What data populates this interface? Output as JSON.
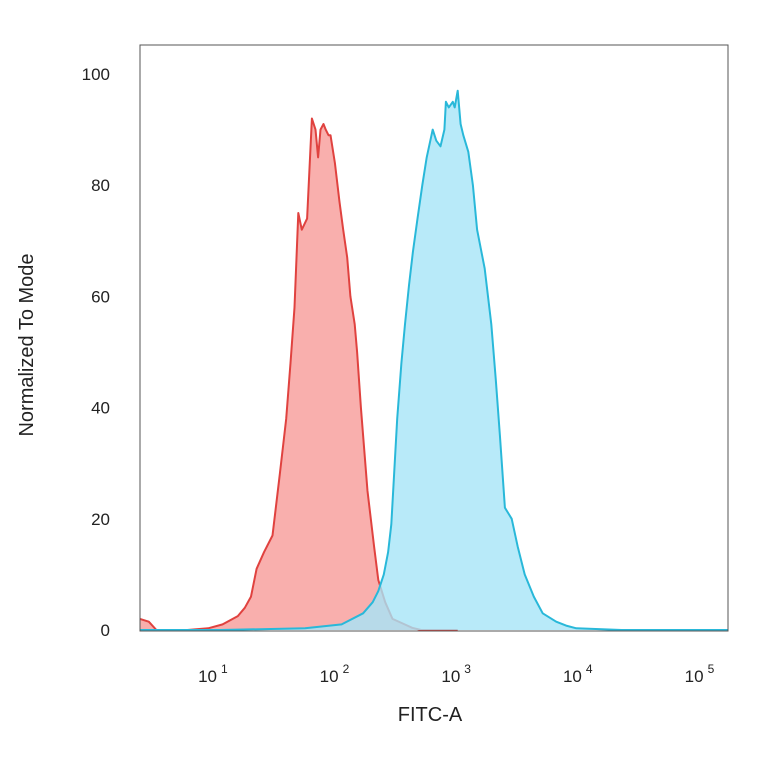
{
  "chart_data": {
    "type": "area",
    "title": "",
    "xlabel": "FITC-A",
    "ylabel": "Normalized To Mode",
    "xscale": "log",
    "xlim": [
      2.2,
      150000
    ],
    "ylim": [
      0,
      105
    ],
    "grid": false,
    "legend": "none",
    "x_ticks": [
      {
        "base": "10",
        "exp": "1",
        "value": 10
      },
      {
        "base": "10",
        "exp": "2",
        "value": 100
      },
      {
        "base": "10",
        "exp": "3",
        "value": 1000
      },
      {
        "base": "10",
        "exp": "4",
        "value": 10000
      },
      {
        "base": "10",
        "exp": "5",
        "value": 100000
      }
    ],
    "y_ticks": [
      {
        "label": "0",
        "value": 0
      },
      {
        "label": "20",
        "value": 20
      },
      {
        "label": "40",
        "value": 40
      },
      {
        "label": "60",
        "value": 60
      },
      {
        "label": "80",
        "value": 80
      },
      {
        "label": "100",
        "value": 100
      }
    ],
    "series": [
      {
        "color": "#e0423f",
        "fill": "#f79b99",
        "x": [
          2.2,
          2.6,
          3.0,
          5.4,
          8.0,
          10.5,
          14,
          16,
          18,
          20,
          23,
          27,
          31,
          35,
          38,
          41,
          44,
          47,
          52,
          57,
          61,
          64,
          67,
          71,
          74,
          78,
          81,
          88,
          96,
          103,
          111,
          118,
          128,
          134,
          144,
          163,
          185,
          200,
          228,
          262,
          330,
          380,
          450,
          600,
          900
        ],
        "y": [
          2,
          1.5,
          0,
          0,
          0.3,
          1,
          2.5,
          4,
          6,
          11,
          14,
          17,
          28,
          38,
          48,
          58,
          75,
          72,
          74,
          92,
          90,
          85,
          90,
          91,
          90,
          89,
          89,
          84,
          77,
          72,
          67,
          60,
          55,
          50,
          40,
          25,
          15,
          9,
          5,
          2,
          1,
          0.4,
          0,
          0,
          0
        ]
      },
      {
        "color": "#29b8d9",
        "fill": "#a6e5f7",
        "x": [
          2.2,
          10,
          50,
          100,
          150,
          180,
          200,
          222,
          241,
          256,
          270,
          286,
          298,
          310,
          332,
          358,
          385,
          420,
          460,
          500,
          560,
          600,
          650,
          700,
          720,
          760,
          820,
          850,
          900,
          950,
          1000,
          1100,
          1200,
          1300,
          1500,
          1700,
          1850,
          2000,
          2200,
          2500,
          2800,
          3200,
          3800,
          4500,
          5800,
          7000,
          8500,
          20000,
          150000
        ],
        "y": [
          0,
          0,
          0.3,
          1,
          3,
          5,
          7,
          10,
          14,
          19,
          28,
          38,
          43,
          48,
          55,
          62,
          68,
          74,
          80,
          85,
          90,
          88,
          87,
          90,
          95,
          94,
          95,
          94,
          97,
          91,
          89,
          86,
          80,
          72,
          65,
          55,
          45,
          35,
          22,
          20,
          15,
          10,
          6,
          3,
          1.5,
          0.8,
          0.3,
          0,
          0
        ]
      }
    ]
  }
}
